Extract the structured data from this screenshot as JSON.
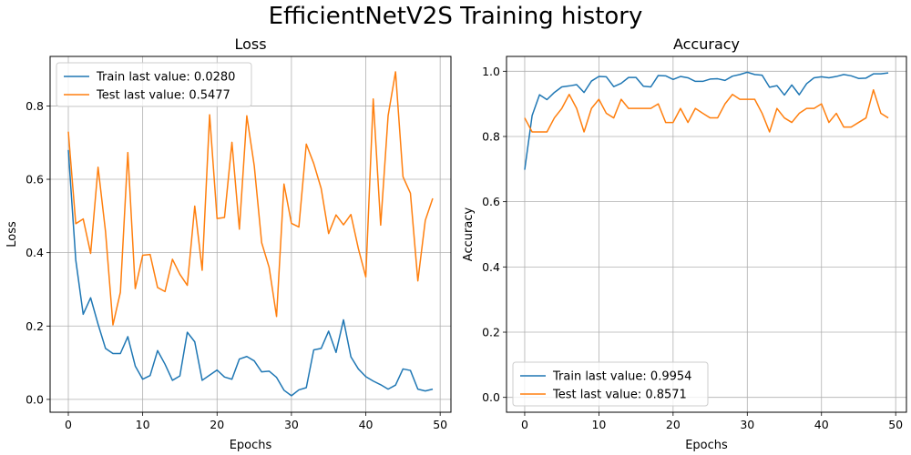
{
  "figure": {
    "title": "EfficientNetV2S Training history"
  },
  "colors": {
    "train": "#1f77b4",
    "test": "#ff7f0e",
    "grid": "#b0b0b0"
  },
  "chart_data": [
    {
      "type": "line",
      "title": "Loss",
      "xlabel": "Epochs",
      "ylabel": "Loss",
      "xlim": [
        -2.45,
        51.45
      ],
      "ylim": [
        -0.035,
        0.935
      ],
      "xticks": [
        0,
        10,
        20,
        30,
        40,
        50
      ],
      "yticks": [
        0.0,
        0.2,
        0.4,
        0.6,
        0.8
      ],
      "ytick_labels": [
        "0.0",
        "0.2",
        "0.4",
        "0.6",
        "0.8"
      ],
      "grid": true,
      "legend": "top-left",
      "x": [
        0,
        1,
        2,
        3,
        4,
        5,
        6,
        7,
        8,
        9,
        10,
        11,
        12,
        13,
        14,
        15,
        16,
        17,
        18,
        19,
        20,
        21,
        22,
        23,
        24,
        25,
        26,
        27,
        28,
        29,
        30,
        31,
        32,
        33,
        34,
        35,
        36,
        37,
        38,
        39,
        40,
        41,
        42,
        43,
        44,
        45,
        46,
        47,
        48,
        49
      ],
      "series": [
        {
          "name": "Train last value: 0.0280",
          "color": "#1f77b4",
          "values": [
            0.68,
            0.38,
            0.232,
            0.277,
            0.205,
            0.139,
            0.125,
            0.125,
            0.171,
            0.091,
            0.055,
            0.065,
            0.133,
            0.096,
            0.052,
            0.064,
            0.183,
            0.157,
            0.052,
            0.066,
            0.08,
            0.061,
            0.055,
            0.11,
            0.117,
            0.105,
            0.075,
            0.077,
            0.06,
            0.025,
            0.01,
            0.026,
            0.032,
            0.135,
            0.139,
            0.186,
            0.128,
            0.217,
            0.116,
            0.083,
            0.062,
            0.05,
            0.04,
            0.028,
            0.039,
            0.083,
            0.079,
            0.028,
            0.023,
            0.028
          ]
        },
        {
          "name": "Test last value: 0.5477",
          "color": "#ff7f0e",
          "values": [
            0.73,
            0.479,
            0.492,
            0.398,
            0.633,
            0.458,
            0.203,
            0.292,
            0.673,
            0.302,
            0.393,
            0.395,
            0.305,
            0.294,
            0.382,
            0.341,
            0.311,
            0.527,
            0.352,
            0.776,
            0.493,
            0.496,
            0.701,
            0.464,
            0.773,
            0.637,
            0.427,
            0.36,
            0.226,
            0.587,
            0.48,
            0.47,
            0.696,
            0.643,
            0.575,
            0.452,
            0.503,
            0.476,
            0.504,
            0.411,
            0.334,
            0.819,
            0.475,
            0.773,
            0.893,
            0.607,
            0.562,
            0.323,
            0.488,
            0.548
          ]
        }
      ]
    },
    {
      "type": "line",
      "title": "Accuracy",
      "xlabel": "Epochs",
      "ylabel": "Accuracy",
      "xlim": [
        -2.45,
        51.45
      ],
      "ylim": [
        -0.0455,
        1.0455
      ],
      "xticks": [
        0,
        10,
        20,
        30,
        40,
        50
      ],
      "yticks": [
        0.0,
        0.2,
        0.4,
        0.6,
        0.8,
        1.0
      ],
      "ytick_labels": [
        "0.0",
        "0.2",
        "0.4",
        "0.6",
        "0.8",
        "1.0"
      ],
      "grid": true,
      "legend": "bottom-left",
      "x": [
        0,
        1,
        2,
        3,
        4,
        5,
        6,
        7,
        8,
        9,
        10,
        11,
        12,
        13,
        14,
        15,
        16,
        17,
        18,
        19,
        20,
        21,
        22,
        23,
        24,
        25,
        26,
        27,
        28,
        29,
        30,
        31,
        32,
        33,
        34,
        35,
        36,
        37,
        38,
        39,
        40,
        41,
        42,
        43,
        44,
        45,
        46,
        47,
        48,
        49
      ],
      "series": [
        {
          "name": "Train last value: 0.9954",
          "color": "#1f77b4",
          "values": [
            0.698,
            0.864,
            0.928,
            0.913,
            0.935,
            0.952,
            0.955,
            0.959,
            0.935,
            0.97,
            0.984,
            0.983,
            0.953,
            0.963,
            0.981,
            0.981,
            0.954,
            0.952,
            0.987,
            0.986,
            0.975,
            0.984,
            0.98,
            0.969,
            0.969,
            0.976,
            0.977,
            0.972,
            0.985,
            0.99,
            0.997,
            0.99,
            0.988,
            0.951,
            0.956,
            0.927,
            0.958,
            0.928,
            0.962,
            0.98,
            0.983,
            0.98,
            0.984,
            0.99,
            0.986,
            0.978,
            0.979,
            0.992,
            0.992,
            0.995
          ]
        },
        {
          "name": "Test last value: 0.8571",
          "color": "#ff7f0e",
          "values": [
            0.857,
            0.814,
            0.814,
            0.814,
            0.857,
            0.886,
            0.929,
            0.886,
            0.814,
            0.886,
            0.914,
            0.871,
            0.857,
            0.914,
            0.886,
            0.886,
            0.886,
            0.886,
            0.9,
            0.843,
            0.843,
            0.886,
            0.843,
            0.886,
            0.871,
            0.857,
            0.857,
            0.9,
            0.929,
            0.914,
            0.914,
            0.914,
            0.871,
            0.814,
            0.886,
            0.857,
            0.843,
            0.871,
            0.886,
            0.886,
            0.9,
            0.843,
            0.871,
            0.829,
            0.829,
            0.843,
            0.857,
            0.943,
            0.871,
            0.857
          ]
        }
      ]
    }
  ]
}
